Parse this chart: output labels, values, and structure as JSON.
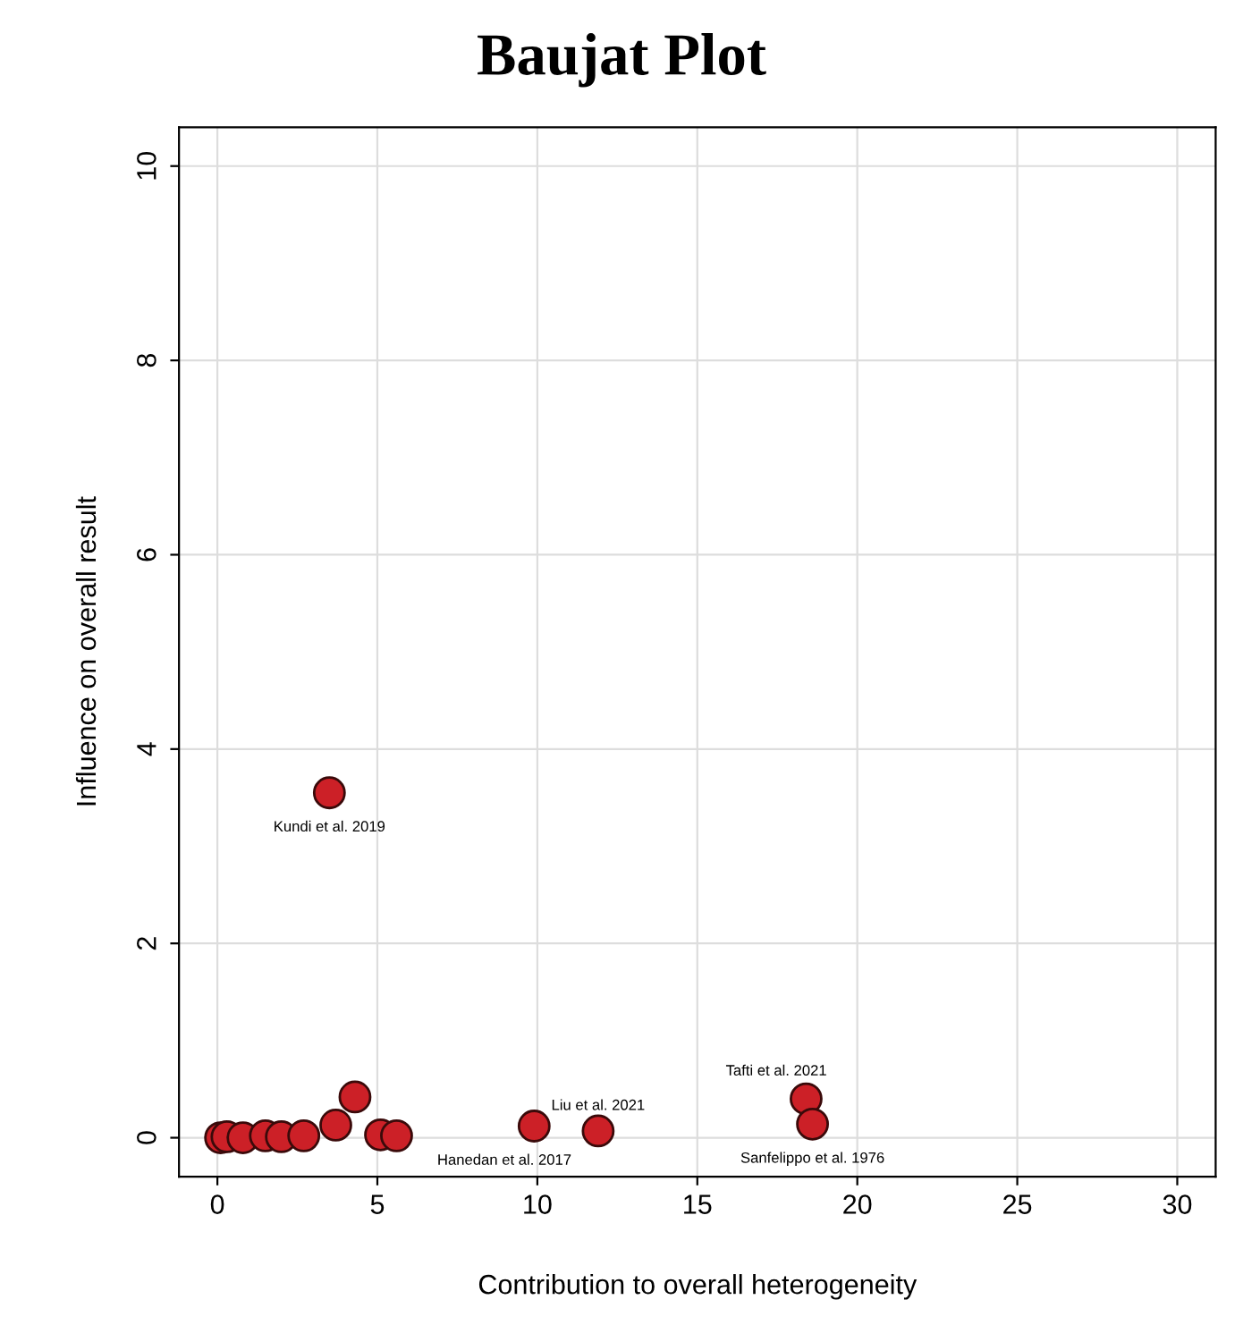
{
  "chart_data": {
    "type": "scatter",
    "title": "Baujat Plot",
    "xlabel": "Contribution to overall heterogeneity",
    "ylabel": "Influence on overall result",
    "series": [
      {
        "color": "#cc2027",
        "x": [
          0.1,
          0.3,
          0.8,
          1.2,
          1.5,
          2.0,
          2.7,
          3.7,
          4.3,
          4.9,
          5.1,
          5.6,
          3.5,
          9.9,
          11.9,
          18.4,
          18.6
        ],
        "values": [
          0.0,
          0.01,
          0.0,
          null,
          0.02,
          0.01,
          0.02,
          0.13,
          0.42,
          null,
          0.03,
          0.02,
          3.55,
          0.12,
          0.07,
          0.4,
          0.14
        ]
      }
    ],
    "annotations": [
      {
        "text": "Kundi et al. 2019",
        "x": 3.5,
        "y": 3.55
      },
      {
        "text": "Hanedan et al. 2017",
        "x": 9.9,
        "y": 0.12
      },
      {
        "text": "Liu et al. 2021",
        "x": 11.9,
        "y": 0.07
      },
      {
        "text": "Tafti et al. 2021",
        "x": 18.4,
        "y": 0.4
      },
      {
        "text": "Sanfelippo et al. 1976",
        "x": 18.6,
        "y": 0.14
      }
    ],
    "xlim": [
      -1.2,
      31.2
    ],
    "ylim": [
      -0.4,
      10.4
    ],
    "xticks": [
      0,
      5,
      10,
      15,
      20,
      25,
      30
    ],
    "yticks": [
      0,
      2,
      4,
      6,
      8,
      10
    ],
    "grid": true,
    "marker": "circle"
  }
}
